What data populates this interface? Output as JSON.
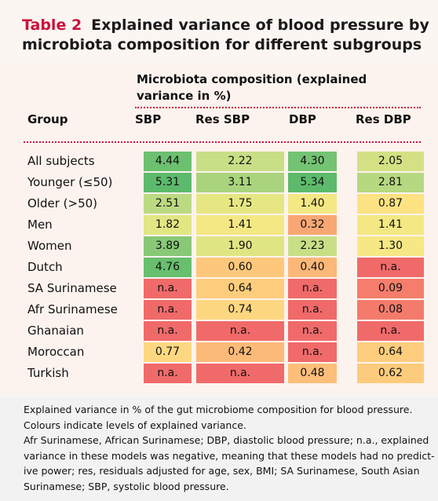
{
  "title": {
    "label": "Table 2",
    "text": "Explained variance of blood pressure by microbiota composition for different subgroups"
  },
  "header": {
    "spanner": [
      "Microbiota composition (explained",
      "variance in %)"
    ],
    "columns": [
      "Group",
      "SBP",
      "Res SBP",
      "DBP",
      "Res DBP"
    ]
  },
  "table": {
    "rows": [
      {
        "group": "All subjects",
        "cells": [
          "4.44",
          "2.22",
          "4.30",
          "2.05"
        ],
        "colors": [
          "#6cc070",
          "#c8df86",
          "#74c374",
          "#d3e184"
        ]
      },
      {
        "group": "Younger (≤50)",
        "cells": [
          "5.31",
          "3.11",
          "5.34",
          "2.81"
        ],
        "colors": [
          "#5dba6c",
          "#a9d47d",
          "#5dba6c",
          "#b6d880"
        ]
      },
      {
        "group": "Older (>50)",
        "cells": [
          "2.51",
          "1.75",
          "1.40",
          "0.87"
        ],
        "colors": [
          "#bcda82",
          "#e6e783",
          "#f4e884",
          "#fde283"
        ]
      },
      {
        "group": "Men",
        "cells": [
          "1.82",
          "1.41",
          "0.32",
          "1.41"
        ],
        "colors": [
          "#e3e683",
          "#f4e884",
          "#f8a774",
          "#f4e884"
        ]
      },
      {
        "group": "Women",
        "cells": [
          "3.89",
          "1.90",
          "2.23",
          "1.30"
        ],
        "colors": [
          "#88c877",
          "#e0e583",
          "#c8df86",
          "#f6e884"
        ]
      },
      {
        "group": "Dutch",
        "cells": [
          "4.76",
          "0.60",
          "0.40",
          "n.a."
        ],
        "colors": [
          "#68bf6e",
          "#fdc87c",
          "#fbb878",
          "#f06a6a"
        ]
      },
      {
        "group": "SA Surinamese",
        "cells": [
          "n.a.",
          "0.64",
          "n.a.",
          "0.09"
        ],
        "colors": [
          "#f06a6a",
          "#fdcd7d",
          "#f06a6a",
          "#f47d6c"
        ]
      },
      {
        "group": "Afr Surinamese",
        "cells": [
          "n.a.",
          "0.74",
          "n.a.",
          "0.08"
        ],
        "colors": [
          "#f06a6a",
          "#fdd680",
          "#f06a6a",
          "#f47b6c"
        ]
      },
      {
        "group": "Ghanaian",
        "cells": [
          "n.a.",
          "n.a.",
          "n.a.",
          "n.a."
        ],
        "colors": [
          "#f06a6a",
          "#f06a6a",
          "#f06a6a",
          "#f06a6a"
        ]
      },
      {
        "group": "Moroccan",
        "cells": [
          "0.77",
          "0.42",
          "n.a.",
          "0.64"
        ],
        "colors": [
          "#fdd881",
          "#fbba78",
          "#f06a6a",
          "#fdcd7d"
        ]
      },
      {
        "group": "Turkish",
        "cells": [
          "n.a.",
          "n.a.",
          "0.48",
          "0.62"
        ],
        "colors": [
          "#f06a6a",
          "#f06a6a",
          "#fcbe79",
          "#fdcb7c"
        ]
      }
    ]
  },
  "footnotes": [
    "Explained variance in % of the gut microbiome composition for blood pressure.",
    "Colours indicate levels of explained variance.",
    "Afr Surinamese, African Surinamese; DBP, diastolic blood pressure; n.a., explained",
    "variance in these models was negative, meaning that these models had no predict-",
    "ive power; res, residuals adjusted for age, sex, BMI; SA Surinamese, South Asian",
    "Surinamese; SBP, systolic blood pressure."
  ]
}
